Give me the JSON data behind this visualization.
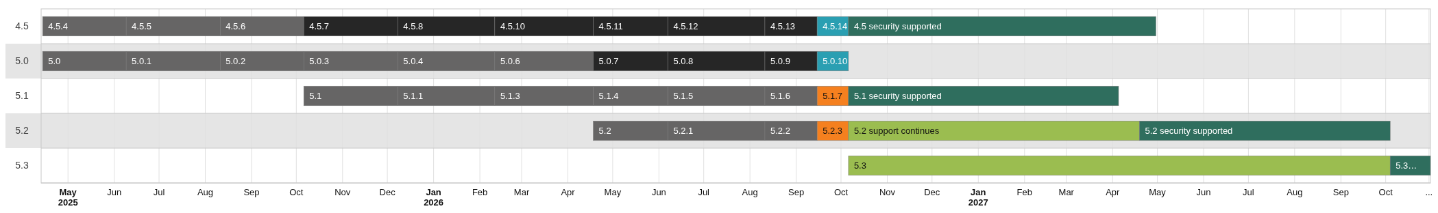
{
  "chart_data": {
    "type": "bar",
    "orientation": "horizontal",
    "categories": [
      "4.5",
      "5.0",
      "5.1",
      "5.2",
      "5.3"
    ],
    "xlim": [
      "2025-04-13",
      "2027-10-31"
    ],
    "xticks": [
      {
        "value": "2025-05",
        "label": "May\n2025"
      },
      {
        "value": "2025-06",
        "label": "Jun"
      },
      {
        "value": "2025-07",
        "label": "Jul"
      },
      {
        "value": "2025-08",
        "label": "Aug"
      },
      {
        "value": "2025-09",
        "label": "Sep"
      },
      {
        "value": "2025-10",
        "label": "Oct"
      },
      {
        "value": "2025-11",
        "label": "Nov"
      },
      {
        "value": "2025-12",
        "label": "Dec"
      },
      {
        "value": "2026-01",
        "label": "Jan\n2026"
      },
      {
        "value": "2026-02",
        "label": "Feb"
      },
      {
        "value": "2026-03",
        "label": "Mar"
      },
      {
        "value": "2026-04",
        "label": "Apr"
      },
      {
        "value": "2026-05",
        "label": "May"
      },
      {
        "value": "2026-06",
        "label": "Jun"
      },
      {
        "value": "2026-07",
        "label": "Jul"
      },
      {
        "value": "2026-08",
        "label": "Aug"
      },
      {
        "value": "2026-09",
        "label": "Sep"
      },
      {
        "value": "2026-10",
        "label": "Oct"
      },
      {
        "value": "2026-11",
        "label": "Nov"
      },
      {
        "value": "2026-12",
        "label": "Dec"
      },
      {
        "value": "2027-01",
        "label": "Jan\n2027"
      },
      {
        "value": "2027-02",
        "label": "Feb"
      },
      {
        "value": "2027-03",
        "label": "Mar"
      },
      {
        "value": "2027-04",
        "label": "Apr"
      },
      {
        "value": "2027-05",
        "label": "May"
      },
      {
        "value": "2027-06",
        "label": "Jun"
      },
      {
        "value": "2027-07",
        "label": "Jul"
      },
      {
        "value": "2027-08",
        "label": "Aug"
      },
      {
        "value": "2027-09",
        "label": "Sep"
      },
      {
        "value": "2027-10",
        "label": "Oct"
      },
      {
        "value": "2027-10-30",
        "label": "..."
      }
    ],
    "grid": "x",
    "series": [
      {
        "values": [
          56,
          56,
          63,
          50,
          363
        ],
        "base": [
          20192,
          20192,
          20367,
          20561,
          20732
        ],
        "colors": [
          "#666565",
          "#666565",
          "#666565",
          "#666565",
          "#9bbd50"
        ]
      },
      {
        "values": [
          63,
          63,
          65,
          65,
          27
        ],
        "base": [
          20248,
          20248,
          20430,
          20611,
          21095
        ],
        "colors": [
          "#666565",
          "#666565",
          "#666565",
          "#666565",
          "#2f6e5e"
        ]
      },
      {
        "values": [
          56,
          56,
          66,
          35,
          null
        ],
        "base": [
          20311,
          20311,
          20495,
          20676,
          null
        ],
        "colors": [
          "#666565",
          "#666565",
          "#666565",
          "#666565",
          null
        ]
      },
      {
        "values": [
          63,
          63,
          50,
          21,
          null
        ],
        "base": [
          20367,
          20367,
          20561,
          20711,
          null
        ],
        "colors": [
          "#262626",
          "#666565",
          "#666565",
          "#f5801f",
          null
        ]
      },
      {
        "values": [
          65,
          65,
          65,
          195,
          null
        ],
        "base": [
          20430,
          20430,
          20611,
          20732,
          null
        ],
        "colors": [
          "#262626",
          "#666565",
          "#666565",
          "#9bbd50",
          null
        ]
      },
      {
        "values": [
          66,
          66,
          35,
          168,
          null
        ],
        "base": [
          20495,
          20495,
          20676,
          20927,
          null
        ],
        "colors": [
          "#262626",
          "#666565",
          "#666565",
          "#2f6e5e",
          null
        ]
      },
      {
        "values": [
          50,
          50,
          21,
          null,
          null
        ],
        "base": [
          20561,
          20561,
          20711,
          null,
          null
        ],
        "colors": [
          "#262626",
          "#262626",
          "#f5801f",
          null,
          null
        ]
      },
      {
        "values": [
          65,
          65,
          181,
          null,
          null
        ],
        "base": [
          20611,
          20611,
          20732,
          null,
          null
        ],
        "colors": [
          "#262626",
          "#262626",
          "#2f6e5e",
          null,
          null
        ]
      },
      {
        "values": [
          35,
          35,
          null,
          null,
          null
        ],
        "base": [
          20676,
          20676,
          null,
          null,
          null
        ],
        "colors": [
          "#262626",
          "#262626",
          null,
          null,
          null
        ]
      },
      {
        "values": [
          21,
          21,
          null,
          null,
          null
        ],
        "base": [
          20711,
          20711,
          null,
          null,
          null
        ],
        "colors": [
          "#2a9fb2",
          "#2a9fb2",
          null,
          null,
          null
        ]
      },
      {
        "values": [
          206,
          null,
          null,
          null,
          null
        ],
        "base": [
          20732,
          null,
          null,
          null,
          null
        ],
        "colors": [
          "#2f6e5e",
          null,
          null,
          null,
          null
        ]
      }
    ],
    "annotations": [
      "4.5.4",
      "5.0",
      "5.1",
      "5.2",
      "5.3",
      "4.5.5",
      "5.0.1",
      "5.1.1",
      "5.2.1",
      "5.3…",
      "4.5.6",
      "5.0.2",
      "5.1.3",
      "5.2.2",
      "4.5.7",
      "5.0.3",
      "5.1.4",
      "5.2.3",
      "4.5.8",
      "5.0.4",
      "5.1.5",
      "5.2 support continues",
      "4.5.10",
      "5.0.6",
      "5.1.6",
      "5.2 security supported",
      "4.5.11",
      "5.0.7",
      "5.1.7",
      "4.5.12",
      "5.0.8",
      "5.1 security supported",
      "4.5.13",
      "5.0.9",
      "4.5.14",
      "5.0.10",
      "4.5 security supported"
    ]
  }
}
